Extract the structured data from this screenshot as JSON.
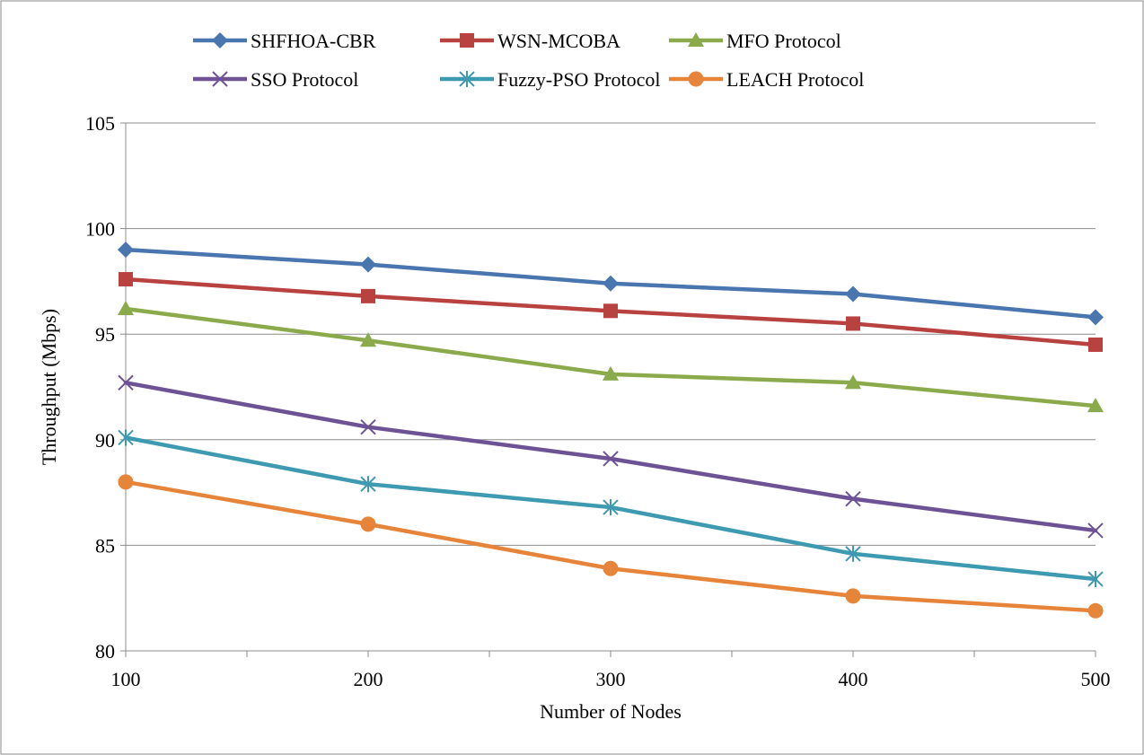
{
  "chart_data": {
    "type": "line",
    "title": "",
    "xlabel": "Number of Nodes",
    "ylabel": "Throughput (Mbps)",
    "x": [
      100,
      200,
      300,
      400,
      500
    ],
    "ylim": [
      80,
      105
    ],
    "yticks": [
      80,
      85,
      90,
      95,
      100,
      105
    ],
    "xticks": [
      100,
      200,
      300,
      400,
      500
    ],
    "grid": "horizontal",
    "legend_position": "top",
    "series": [
      {
        "name": "SHFHOA-CBR",
        "color": "#4A76B0",
        "marker": "diamond",
        "values": [
          99.0,
          98.3,
          97.4,
          96.9,
          95.8
        ]
      },
      {
        "name": "WSN-MCOBA",
        "color": "#B84240",
        "marker": "square",
        "values": [
          97.6,
          96.8,
          96.1,
          95.5,
          94.5
        ]
      },
      {
        "name": "MFO Protocol",
        "color": "#8BAA4B",
        "marker": "triangle",
        "values": [
          96.2,
          94.7,
          93.1,
          92.7,
          91.6
        ]
      },
      {
        "name": "SSO Protocol",
        "color": "#6E5394",
        "marker": "x",
        "values": [
          92.7,
          90.6,
          89.1,
          87.2,
          85.7
        ]
      },
      {
        "name": "Fuzzy-PSO Protocol",
        "color": "#3D9AB0",
        "marker": "asterisk",
        "values": [
          90.1,
          87.9,
          86.8,
          84.6,
          83.4
        ]
      },
      {
        "name": "LEACH Protocol",
        "color": "#E6853A",
        "marker": "circle",
        "values": [
          88.0,
          86.0,
          83.9,
          82.6,
          81.9
        ]
      }
    ]
  }
}
